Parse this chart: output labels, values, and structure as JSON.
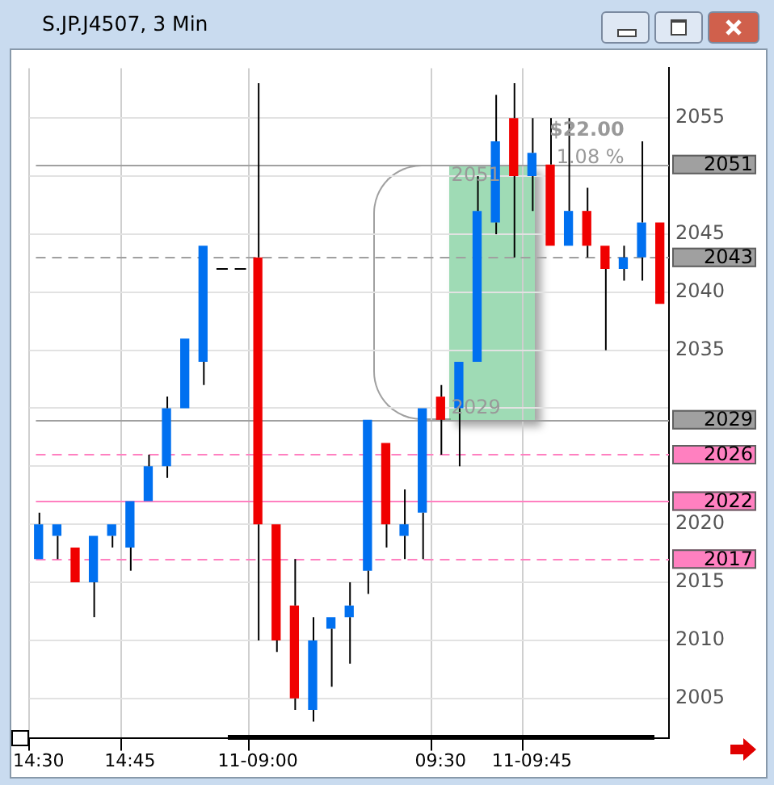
{
  "chart_data": {
    "type": "candlestick",
    "title": "S.JP.J4507, 3 Min",
    "categories": [
      "14:30",
      null,
      null,
      null,
      null,
      "14:45",
      null,
      null,
      null,
      null,
      null,
      null,
      "11-09:00",
      null,
      null,
      null,
      null,
      null,
      null,
      null,
      null,
      null,
      "09:30",
      null,
      null,
      null,
      null,
      "11-09:45",
      null,
      null,
      null,
      null,
      null,
      null,
      null
    ],
    "ohlc": [
      [
        2017,
        2021,
        2017,
        2020
      ],
      [
        2019,
        2020,
        2017,
        2020
      ],
      [
        2018,
        2018,
        2015,
        2015
      ],
      [
        2015,
        2019,
        2012,
        2019
      ],
      [
        2019,
        2020,
        2018,
        2020
      ],
      [
        2018,
        2022,
        2016,
        2022
      ],
      [
        2022,
        2026,
        2022,
        2025
      ],
      [
        2025,
        2031,
        2024,
        2030
      ],
      [
        2030,
        2036,
        2030,
        2036
      ],
      [
        2034,
        2044,
        2032,
        2044
      ],
      [
        2042,
        2042,
        2042,
        2042
      ],
      [
        2042,
        2042,
        2042,
        2042
      ],
      [
        2043,
        2058,
        2010,
        2020
      ],
      [
        2020,
        2020,
        2009,
        2010
      ],
      [
        2013,
        2017,
        2004,
        2005
      ],
      [
        2004,
        2012,
        2003,
        2010
      ],
      [
        2011,
        2012,
        2006,
        2012
      ],
      [
        2012,
        2015,
        2008,
        2013
      ],
      [
        2016,
        2029,
        2014,
        2029
      ],
      [
        2027,
        2027,
        2018,
        2020
      ],
      [
        2019,
        2023,
        2017,
        2020
      ],
      [
        2021,
        2030,
        2017,
        2030
      ],
      [
        2031,
        2032,
        2026,
        2029
      ],
      [
        2030,
        2034,
        2025,
        2034
      ],
      [
        2034,
        2050,
        2034,
        2047
      ],
      [
        2046,
        2057,
        2045,
        2053
      ],
      [
        2055,
        2058,
        2043,
        2050
      ],
      [
        2050,
        2055,
        2047,
        2052
      ],
      [
        2051,
        2055,
        2044,
        2044
      ],
      [
        2044,
        2055,
        2044,
        2047
      ],
      [
        2047,
        2049,
        2043,
        2044
      ],
      [
        2044,
        2044,
        2035,
        2042
      ],
      [
        2042,
        2044,
        2041,
        2043
      ],
      [
        2043,
        2053,
        2041,
        2046
      ],
      [
        2046,
        2046,
        2039,
        2039
      ]
    ],
    "colors": [
      "#0070f0",
      "#0070f0",
      "#f00000",
      "#0070f0",
      "#0070f0",
      "#0070f0",
      "#0070f0",
      "#0070f0",
      "#0070f0",
      "#0070f0",
      "#000000",
      "#000000",
      "#f00000",
      "#f00000",
      "#f00000",
      "#0070f0",
      "#0070f0",
      "#0070f0",
      "#0070f0",
      "#f00000",
      "#0070f0",
      "#0070f0",
      "#f00000",
      "#0070f0",
      "#0070f0",
      "#0070f0",
      "#f00000",
      "#0070f0",
      "#f00000",
      "#0070f0",
      "#f00000",
      "#f00000",
      "#0070f0",
      "#0070f0",
      "#f00000"
    ],
    "ylim": [
      2001.6,
      2059.3
    ],
    "yticks": [
      2005,
      2010,
      2015,
      2020,
      {
        "value": 2025,
        "label": null
      },
      {
        "value": 2030,
        "label": null
      },
      2035,
      2040,
      2045,
      {
        "value": 2050,
        "label": null
      },
      2055
    ],
    "grid": true,
    "legend": false,
    "ref_lines": [
      {
        "axis": "y",
        "value": 2051,
        "label": "2051",
        "color": "#a0a0a0",
        "line_style": "solid"
      },
      {
        "axis": "y",
        "value": 2043,
        "label": "2043",
        "color": "#a0a0a0",
        "line_style": "dashed"
      },
      {
        "axis": "y",
        "value": 2029,
        "label": "2029",
        "color": "#a0a0a0",
        "line_style": "solid"
      },
      {
        "axis": "y",
        "value": 2026,
        "label": "2026",
        "color": "#ff80c0",
        "line_style": "dashed"
      },
      {
        "axis": "y",
        "value": 2022,
        "label": "2022",
        "color": "#ff80c0",
        "line_style": "solid"
      },
      {
        "axis": "y",
        "value": 2017,
        "label": "2017",
        "color": "#ff80c0",
        "line_style": "dashed"
      }
    ],
    "annotations": [
      "$22.00",
      "1.08 %",
      {
        "text": "2051",
        "y": 2051
      },
      {
        "text": "2029",
        "y": 2029
      }
    ]
  }
}
